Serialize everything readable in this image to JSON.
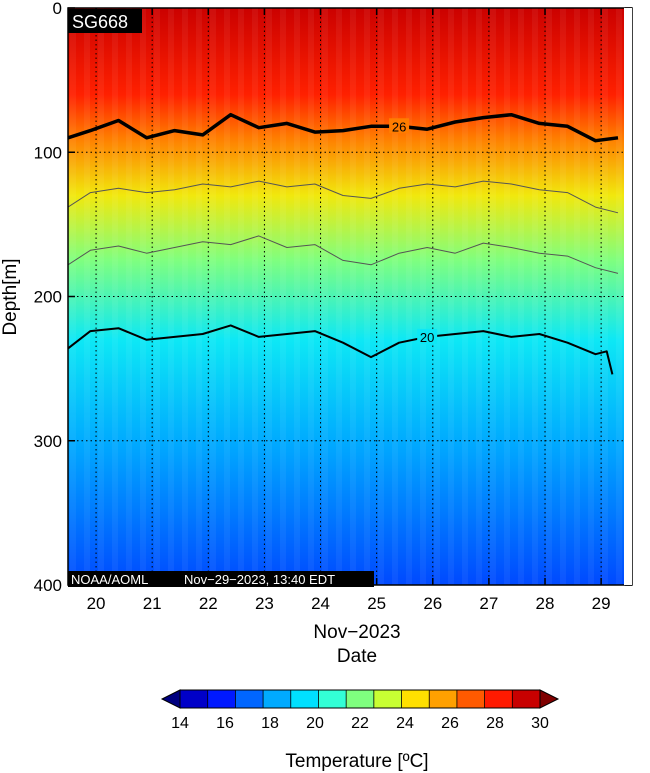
{
  "chart_data": {
    "type": "heatmap",
    "platform_label": "SG668",
    "credit": "NOAA/AOML",
    "timestamp": "Nov−29−2023, 13:40 EDT",
    "xlabel": "Date",
    "xlabel_month": "Nov−2023",
    "ylabel": "Depth[m]",
    "xlim": [
      19.5,
      29.55
    ],
    "ylim": [
      0,
      400
    ],
    "x_ticks": [
      "20",
      "21",
      "22",
      "23",
      "24",
      "25",
      "26",
      "27",
      "28",
      "29"
    ],
    "y_ticks": [
      "0",
      "100",
      "200",
      "300",
      "400"
    ],
    "grid": true,
    "colorbar": {
      "label": "Temperature [ºC]",
      "min": 14,
      "max": 30,
      "ticks": [
        "14",
        "16",
        "18",
        "20",
        "22",
        "24",
        "26",
        "28",
        "30"
      ],
      "colors": [
        "#00007f",
        "#0000c8",
        "#0019ff",
        "#0066ff",
        "#00aaff",
        "#00e0ff",
        "#33ffd6",
        "#7fff7f",
        "#c8ff33",
        "#ffe000",
        "#ffa000",
        "#ff5a00",
        "#ff1a00",
        "#c80000",
        "#7f0000"
      ]
    },
    "temperature_profile": {
      "depths": [
        0,
        60,
        90,
        130,
        175,
        230,
        300,
        400
      ],
      "values": [
        28.8,
        27.6,
        26,
        24,
        22,
        20,
        18.6,
        17
      ]
    },
    "contours": [
      {
        "level": 26,
        "label": "26",
        "x": [
          19.5,
          19.9,
          20.4,
          20.9,
          21.4,
          21.9,
          22.4,
          22.9,
          23.4,
          23.9,
          24.4,
          24.9,
          25.4,
          25.9,
          26.4,
          26.9,
          27.4,
          27.9,
          28.4,
          28.9,
          29.3
        ],
        "y": [
          90,
          85,
          78,
          90,
          85,
          88,
          74,
          83,
          80,
          86,
          85,
          82,
          82,
          84,
          79,
          76,
          74,
          80,
          82,
          92,
          90
        ]
      },
      {
        "level": 24,
        "label": "",
        "x": [
          19.5,
          19.9,
          20.4,
          20.9,
          21.4,
          21.9,
          22.4,
          22.9,
          23.4,
          23.9,
          24.4,
          24.9,
          25.4,
          25.9,
          26.4,
          26.9,
          27.4,
          27.9,
          28.4,
          28.9,
          29.3
        ],
        "y": [
          138,
          128,
          125,
          128,
          126,
          122,
          124,
          120,
          124,
          122,
          130,
          132,
          125,
          122,
          124,
          120,
          122,
          126,
          128,
          138,
          142
        ]
      },
      {
        "level": 22,
        "label": "",
        "x": [
          19.5,
          19.9,
          20.4,
          20.9,
          21.4,
          21.9,
          22.4,
          22.9,
          23.4,
          23.9,
          24.4,
          24.9,
          25.4,
          25.9,
          26.4,
          26.9,
          27.4,
          27.9,
          28.4,
          28.9,
          29.3
        ],
        "y": [
          178,
          168,
          165,
          170,
          166,
          162,
          164,
          158,
          166,
          164,
          175,
          178,
          170,
          166,
          170,
          163,
          166,
          170,
          172,
          180,
          184
        ]
      },
      {
        "level": 20,
        "label": "20",
        "x": [
          19.5,
          19.9,
          20.4,
          20.9,
          21.4,
          21.9,
          22.4,
          22.9,
          23.4,
          23.9,
          24.4,
          24.9,
          25.4,
          25.9,
          26.4,
          26.9,
          27.4,
          27.9,
          28.4,
          28.9,
          29.1,
          29.2
        ],
        "y": [
          236,
          224,
          222,
          230,
          228,
          226,
          220,
          228,
          226,
          224,
          232,
          242,
          232,
          228,
          226,
          224,
          228,
          226,
          232,
          240,
          238,
          254
        ]
      }
    ]
  }
}
